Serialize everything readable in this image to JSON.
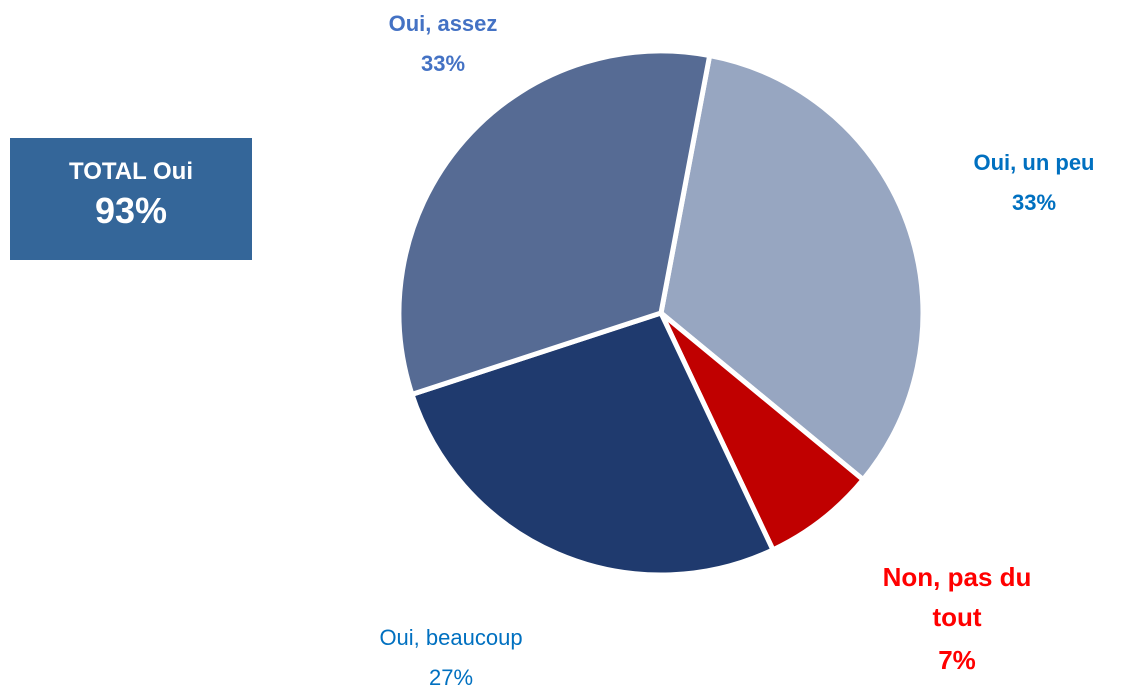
{
  "chart_data": {
    "type": "pie",
    "categories": [
      "Oui, un peu",
      "Non, pas du tout",
      "Oui, beaucoup",
      "Oui, assez"
    ],
    "values": [
      33,
      7,
      27,
      33
    ],
    "value_labels": [
      "33%",
      "7%",
      "27%",
      "33%"
    ],
    "colors": [
      "#97a6c1",
      "#c00000",
      "#1f3a6e",
      "#566b94"
    ],
    "label_colors": [
      "#0070c0",
      "#ff0000",
      "#0070c0",
      "#4472c4"
    ],
    "annotation": {
      "title": "TOTAL Oui",
      "value": "93%",
      "color": "#346699"
    }
  }
}
